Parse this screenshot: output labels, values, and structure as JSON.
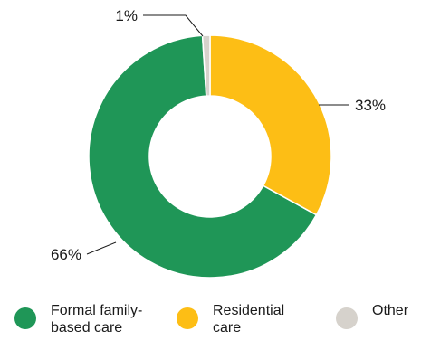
{
  "chart_data": {
    "type": "pie",
    "donut": true,
    "categories": [
      "Formal family-based care",
      "Residential care",
      "Other"
    ],
    "values": [
      66,
      33,
      1
    ],
    "value_labels": [
      "66%",
      "33%",
      "1%"
    ],
    "colors": [
      "#1f9657",
      "#fdbe15",
      "#d6d2cc"
    ],
    "legend_placement": "bottom"
  },
  "legend": {
    "items": [
      {
        "label": "Formal family-\nbased care",
        "color": "#1f9657"
      },
      {
        "label": "Residential\ncare",
        "color": "#fdbe15"
      },
      {
        "label": "Other",
        "color": "#d6d2cc"
      }
    ]
  }
}
